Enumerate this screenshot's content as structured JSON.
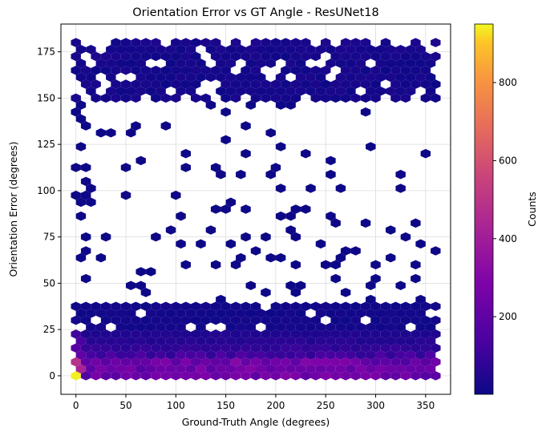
{
  "chart_data": {
    "type": "hexbin",
    "title": "Orientation Error vs GT Angle - ResUNet18",
    "xlabel": "Ground-Truth Angle (degrees)",
    "ylabel": "Orientation Error (degrees)",
    "xlim": [
      -15,
      375
    ],
    "ylim": [
      -10,
      190
    ],
    "xticks": [
      0,
      50,
      100,
      150,
      200,
      250,
      300,
      350
    ],
    "yticks": [
      0,
      25,
      50,
      75,
      100,
      125,
      150,
      175
    ],
    "grid": true,
    "colormap": "plasma",
    "colorbar": {
      "label": "Counts",
      "range": [
        1,
        950
      ],
      "ticks": [
        200,
        400,
        600,
        800
      ]
    },
    "density_summary": {
      "peak": {
        "x": 0,
        "y": 0,
        "count": 940
      },
      "dense_band_low_error": {
        "x_range": [
          0,
          360
        ],
        "y_range": [
          0,
          40
        ],
        "typical_count": [
          20,
          300
        ]
      },
      "dense_band_high_error": {
        "x_range": [
          0,
          360
        ],
        "y_range": [
          150,
          180
        ],
        "typical_count": [
          1,
          60
        ]
      },
      "sparse_middle": {
        "x_range": [
          0,
          360
        ],
        "y_range": [
          40,
          150
        ],
        "typical_count": [
          1,
          10
        ]
      }
    }
  }
}
